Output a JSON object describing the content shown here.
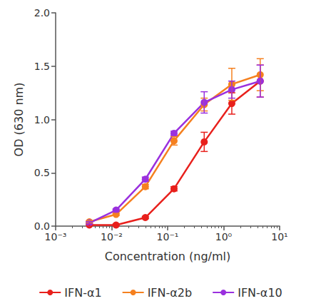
{
  "chart_data": {
    "type": "line",
    "x_label": "Concentration (ng/ml)",
    "y_label": "OD (630 nm)",
    "log": "x",
    "grid": false,
    "legend": "bottom",
    "marker": "circle",
    "xlim": [
      0.001,
      10
    ],
    "xticks": [
      {
        "value": 0.001,
        "label": "10⁻³"
      },
      {
        "value": 0.01,
        "label": "10⁻²"
      },
      {
        "value": 0.1,
        "label": "10⁻¹"
      },
      {
        "value": 1,
        "label": "10⁰"
      },
      {
        "value": 10,
        "label": "10¹"
      }
    ],
    "ylim": [
      0,
      2
    ],
    "yticks": [
      {
        "value": 0,
        "label": "0.0"
      },
      {
        "value": 0.5,
        "label": "0.5"
      },
      {
        "value": 1,
        "label": "1.0"
      },
      {
        "value": 1.5,
        "label": "1.5"
      },
      {
        "value": 2,
        "label": "2.0"
      }
    ],
    "x": [
      0.004,
      0.012,
      0.04,
      0.13,
      0.45,
      1.4,
      4.5
    ],
    "series": [
      {
        "name": "IFN-α1",
        "color": "#e8201c",
        "values": [
          0.01,
          0.01,
          0.08,
          0.35,
          0.79,
          1.15,
          1.36
        ],
        "errors": [
          0.01,
          0.01,
          0.01,
          0.02,
          0.09,
          0.1,
          0.15
        ]
      },
      {
        "name": "IFN-α2b",
        "color": "#f5801f",
        "values": [
          0.04,
          0.11,
          0.37,
          0.8,
          1.14,
          1.33,
          1.42
        ],
        "errors": [
          0.01,
          0.01,
          0.02,
          0.04,
          0.06,
          0.15,
          0.15
        ]
      },
      {
        "name": "IFN-α10",
        "color": "#9a30de",
        "values": [
          0.03,
          0.15,
          0.44,
          0.87,
          1.16,
          1.28,
          1.36
        ],
        "errors": [
          0.01,
          0.01,
          0.02,
          0.02,
          0.1,
          0.08,
          0.15
        ]
      }
    ]
  }
}
